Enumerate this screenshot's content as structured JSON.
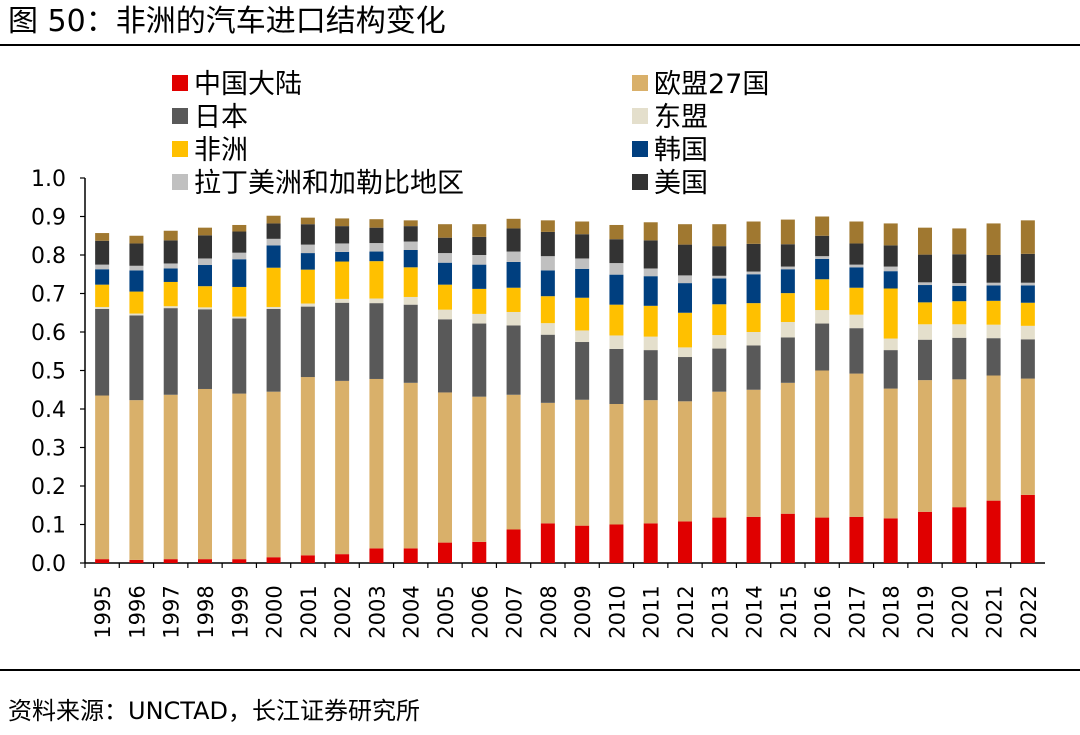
{
  "figure": {
    "title": "图 50：非洲的汽车进口结构变化",
    "source": "资料来源：UNCTAD，长江证券研究所"
  },
  "colors": {
    "中国大陆": "#e00000",
    "欧盟27国": "#d9b06a",
    "日本": "#595959",
    "东盟": "#e4dfcc",
    "非洲": "#ffc000",
    "韩国": "#003f7f",
    "拉丁美洲和加勒比地区": "#c0c0c0",
    "美国": "#333333",
    "其他": "#a07830"
  },
  "chart_data": {
    "type": "bar",
    "stacked": true,
    "title": "",
    "xlabel": "",
    "ylabel": "",
    "ylim": [
      0,
      1.0
    ],
    "yticks": [
      "0.0",
      "0.1",
      "0.2",
      "0.3",
      "0.4",
      "0.5",
      "0.6",
      "0.7",
      "0.8",
      "0.9",
      "1.0"
    ],
    "grid": false,
    "legend_position": "top",
    "categories": [
      "1995",
      "1996",
      "1997",
      "1998",
      "1999",
      "2000",
      "2001",
      "2002",
      "2003",
      "2004",
      "2005",
      "2006",
      "2007",
      "2008",
      "2009",
      "2010",
      "2011",
      "2012",
      "2013",
      "2014",
      "2015",
      "2016",
      "2017",
      "2018",
      "2019",
      "2020",
      "2021",
      "2022"
    ],
    "series": [
      {
        "name": "中国大陆",
        "values": [
          0.01,
          0.008,
          0.01,
          0.01,
          0.01,
          0.015,
          0.02,
          0.023,
          0.038,
          0.038,
          0.053,
          0.055,
          0.087,
          0.103,
          0.097,
          0.1,
          0.103,
          0.108,
          0.118,
          0.12,
          0.128,
          0.118,
          0.12,
          0.116,
          0.133,
          0.145,
          0.162,
          0.177
        ]
      },
      {
        "name": "欧盟27国",
        "values": [
          0.425,
          0.415,
          0.427,
          0.442,
          0.43,
          0.43,
          0.463,
          0.45,
          0.44,
          0.43,
          0.39,
          0.377,
          0.35,
          0.313,
          0.327,
          0.313,
          0.32,
          0.312,
          0.327,
          0.33,
          0.34,
          0.382,
          0.372,
          0.337,
          0.342,
          0.332,
          0.325,
          0.302
        ]
      },
      {
        "name": "日本",
        "values": [
          0.225,
          0.22,
          0.225,
          0.207,
          0.195,
          0.215,
          0.183,
          0.203,
          0.197,
          0.203,
          0.19,
          0.19,
          0.18,
          0.177,
          0.15,
          0.143,
          0.13,
          0.115,
          0.112,
          0.115,
          0.118,
          0.122,
          0.118,
          0.1,
          0.105,
          0.108,
          0.097,
          0.102
        ]
      },
      {
        "name": "东盟",
        "values": [
          0.005,
          0.005,
          0.005,
          0.005,
          0.005,
          0.005,
          0.008,
          0.01,
          0.012,
          0.02,
          0.025,
          0.025,
          0.035,
          0.03,
          0.03,
          0.035,
          0.035,
          0.025,
          0.035,
          0.035,
          0.04,
          0.035,
          0.035,
          0.03,
          0.04,
          0.035,
          0.035,
          0.035
        ]
      },
      {
        "name": "非洲",
        "values": [
          0.058,
          0.057,
          0.063,
          0.055,
          0.077,
          0.102,
          0.088,
          0.097,
          0.097,
          0.077,
          0.065,
          0.065,
          0.063,
          0.07,
          0.085,
          0.08,
          0.08,
          0.09,
          0.08,
          0.075,
          0.075,
          0.08,
          0.07,
          0.13,
          0.057,
          0.06,
          0.062,
          0.06
        ]
      },
      {
        "name": "韩国",
        "values": [
          0.04,
          0.055,
          0.035,
          0.055,
          0.072,
          0.058,
          0.043,
          0.025,
          0.025,
          0.045,
          0.057,
          0.063,
          0.067,
          0.067,
          0.075,
          0.078,
          0.077,
          0.077,
          0.067,
          0.075,
          0.062,
          0.053,
          0.053,
          0.045,
          0.045,
          0.04,
          0.04,
          0.045
        ]
      },
      {
        "name": "拉丁美洲和加勒比地区",
        "values": [
          0.012,
          0.012,
          0.013,
          0.017,
          0.017,
          0.017,
          0.022,
          0.022,
          0.022,
          0.022,
          0.025,
          0.025,
          0.027,
          0.037,
          0.027,
          0.03,
          0.02,
          0.02,
          0.007,
          0.007,
          0.007,
          0.007,
          0.007,
          0.012,
          0.007,
          0.007,
          0.007,
          0.007
        ]
      },
      {
        "name": "美国",
        "values": [
          0.062,
          0.058,
          0.06,
          0.06,
          0.055,
          0.04,
          0.053,
          0.045,
          0.04,
          0.04,
          0.04,
          0.047,
          0.06,
          0.063,
          0.063,
          0.062,
          0.073,
          0.08,
          0.077,
          0.072,
          0.058,
          0.053,
          0.055,
          0.055,
          0.072,
          0.075,
          0.072,
          0.075
        ]
      },
      {
        "name": "",
        "values": [
          0.02,
          0.02,
          0.025,
          0.02,
          0.017,
          0.02,
          0.017,
          0.02,
          0.022,
          0.015,
          0.035,
          0.033,
          0.025,
          0.03,
          0.033,
          0.037,
          0.047,
          0.053,
          0.057,
          0.058,
          0.064,
          0.05,
          0.057,
          0.057,
          0.07,
          0.067,
          0.082,
          0.087
        ]
      }
    ]
  }
}
